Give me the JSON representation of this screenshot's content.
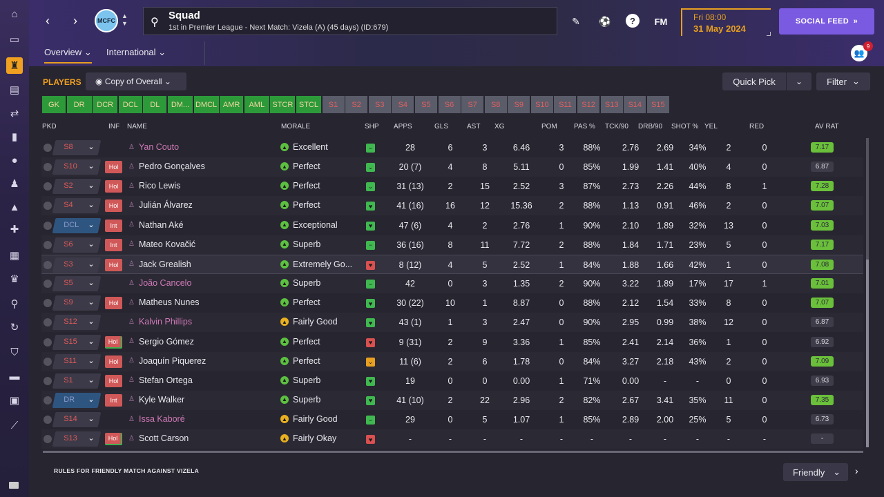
{
  "header": {
    "title": "Squad",
    "subtitle": "1st in Premier League - Next Match: Vizela (A) (45 days) (ID:679)",
    "date_day": "Fri 08:00",
    "date": "31 May 2024",
    "social_feed": "SOCIAL FEED",
    "fm_label": "FM",
    "help": "?",
    "notif_count": "9"
  },
  "tabs": [
    "Overview",
    "International"
  ],
  "toolbar": {
    "players_label": "PLAYERS",
    "view_select": "Copy of Overall",
    "quick_pick": "Quick Pick",
    "filter": "Filter"
  },
  "position_chips": {
    "green": [
      "GK",
      "DR",
      "DCR",
      "DCL",
      "DL",
      "DM...",
      "DMCL",
      "AMR",
      "AML",
      "STCR",
      "STCL"
    ],
    "subs": [
      "S1",
      "S2",
      "S3",
      "S4",
      "S5",
      "S6",
      "S7",
      "S8",
      "S9",
      "S10",
      "S11",
      "S12",
      "S13",
      "S14",
      "S15"
    ]
  },
  "columns": [
    "PKD",
    "INF",
    "NAME",
    "MORALE",
    "SHP",
    "APPS",
    "GLS",
    "AST",
    "XG",
    "POM",
    "PAS %",
    "TCK/90",
    "DRB/90",
    "SHOT %",
    "YEL",
    "RED",
    "AV RAT"
  ],
  "players": [
    {
      "pos": "S8",
      "inf": "",
      "name": "Yan Couto",
      "pink": true,
      "morale": "Excellent",
      "mc": "g",
      "shp": "g",
      "shp_icon": "−",
      "apps": "28",
      "gls": "6",
      "ast": "3",
      "xg": "6.46",
      "pom": "3",
      "pas": "88%",
      "tck": "2.76",
      "drb": "2.69",
      "shot": "34%",
      "yel": "2",
      "red": "0",
      "avr": "7.17",
      "avr_c": "g"
    },
    {
      "pos": "S10",
      "inf": "Hol",
      "name": "Pedro Gonçalves",
      "pink": false,
      "morale": "Perfect",
      "mc": "g",
      "shp": "g",
      "shp_icon": "⌄",
      "apps": "20 (7)",
      "gls": "4",
      "ast": "8",
      "xg": "5.11",
      "pom": "0",
      "pas": "85%",
      "tck": "1.99",
      "drb": "1.41",
      "shot": "40%",
      "yel": "4",
      "red": "0",
      "avr": "6.87",
      "avr_c": "n"
    },
    {
      "pos": "S2",
      "inf": "Hol",
      "name": "Rico Lewis",
      "pink": false,
      "morale": "Perfect",
      "mc": "g",
      "shp": "g",
      "shp_icon": "⌄",
      "apps": "31 (13)",
      "gls": "2",
      "ast": "15",
      "xg": "2.52",
      "pom": "3",
      "pas": "87%",
      "tck": "2.73",
      "drb": "2.26",
      "shot": "44%",
      "yel": "8",
      "red": "1",
      "avr": "7.28",
      "avr_c": "g"
    },
    {
      "pos": "S4",
      "inf": "Hol",
      "name": "Julián Álvarez",
      "pink": false,
      "morale": "Perfect",
      "mc": "g",
      "shp": "g",
      "shp_icon": "♥",
      "apps": "41 (16)",
      "gls": "16",
      "ast": "12",
      "xg": "15.36",
      "pom": "2",
      "pas": "88%",
      "tck": "1.13",
      "drb": "0.91",
      "shot": "46%",
      "yel": "2",
      "red": "0",
      "avr": "7.07",
      "avr_c": "g"
    },
    {
      "pos": "DCL",
      "inf": "Int",
      "name": "Nathan Aké",
      "pink": false,
      "morale": "Exceptional",
      "mc": "g",
      "shp": "g",
      "shp_icon": "♥",
      "apps": "47 (6)",
      "gls": "4",
      "ast": "2",
      "xg": "2.76",
      "pom": "1",
      "pas": "90%",
      "tck": "2.10",
      "drb": "1.89",
      "shot": "32%",
      "yel": "13",
      "red": "0",
      "avr": "7.03",
      "avr_c": "g",
      "dl": true
    },
    {
      "pos": "S6",
      "inf": "Int",
      "name": "Mateo Kovačić",
      "pink": false,
      "morale": "Superb",
      "mc": "g",
      "shp": "g",
      "shp_icon": "−",
      "apps": "36 (16)",
      "gls": "8",
      "ast": "11",
      "xg": "7.72",
      "pom": "2",
      "pas": "88%",
      "tck": "1.84",
      "drb": "1.71",
      "shot": "23%",
      "yel": "5",
      "red": "0",
      "avr": "7.17",
      "avr_c": "g"
    },
    {
      "pos": "S3",
      "inf": "Hol",
      "name": "Jack Grealish",
      "pink": false,
      "morale": "Extremely Go...",
      "mc": "g",
      "shp": "r",
      "shp_icon": "♥",
      "apps": "8 (12)",
      "gls": "4",
      "ast": "5",
      "xg": "2.52",
      "pom": "1",
      "pas": "84%",
      "tck": "1.88",
      "drb": "1.66",
      "shot": "42%",
      "yel": "1",
      "red": "0",
      "avr": "7.08",
      "avr_c": "g",
      "hl": true
    },
    {
      "pos": "S5",
      "inf": "",
      "name": "João Cancelo",
      "pink": true,
      "morale": "Superb",
      "mc": "g",
      "shp": "g",
      "shp_icon": "−",
      "apps": "42",
      "gls": "0",
      "ast": "3",
      "xg": "1.35",
      "pom": "2",
      "pas": "90%",
      "tck": "3.22",
      "drb": "1.89",
      "shot": "17%",
      "yel": "17",
      "red": "1",
      "avr": "7.01",
      "avr_c": "g"
    },
    {
      "pos": "S9",
      "inf": "Hol",
      "name": "Matheus Nunes",
      "pink": false,
      "morale": "Perfect",
      "mc": "g",
      "shp": "g",
      "shp_icon": "♥",
      "apps": "30 (22)",
      "gls": "10",
      "ast": "1",
      "xg": "8.87",
      "pom": "0",
      "pas": "88%",
      "tck": "2.12",
      "drb": "1.54",
      "shot": "33%",
      "yel": "8",
      "red": "0",
      "avr": "7.07",
      "avr_c": "g"
    },
    {
      "pos": "S12",
      "inf": "",
      "name": "Kalvin Phillips",
      "pink": true,
      "morale": "Fairly Good",
      "mc": "y",
      "shp": "g",
      "shp_icon": "♥",
      "apps": "43 (1)",
      "gls": "1",
      "ast": "3",
      "xg": "2.47",
      "pom": "0",
      "pas": "90%",
      "tck": "2.95",
      "drb": "0.99",
      "shot": "38%",
      "yel": "12",
      "red": "0",
      "avr": "6.87",
      "avr_c": "n"
    },
    {
      "pos": "S15",
      "inf": "Hol",
      "name": "Sergio Gómez",
      "pink": false,
      "morale": "Perfect",
      "mc": "g",
      "shp": "r",
      "shp_icon": "♥",
      "apps": "9 (31)",
      "gls": "2",
      "ast": "9",
      "xg": "3.36",
      "pom": "1",
      "pas": "85%",
      "tck": "2.41",
      "drb": "2.14",
      "shot": "36%",
      "yel": "1",
      "red": "0",
      "avr": "6.92",
      "avr_c": "n",
      "gb": true
    },
    {
      "pos": "S11",
      "inf": "Hol",
      "name": "Joaquín Piquerez",
      "pink": false,
      "morale": "Perfect",
      "mc": "g",
      "shp": "o",
      "shp_icon": "⌄",
      "apps": "11 (6)",
      "gls": "2",
      "ast": "6",
      "xg": "1.78",
      "pom": "0",
      "pas": "84%",
      "tck": "3.27",
      "drb": "2.18",
      "shot": "43%",
      "yel": "2",
      "red": "0",
      "avr": "7.09",
      "avr_c": "g"
    },
    {
      "pos": "S1",
      "inf": "Hol",
      "name": "Stefan Ortega",
      "pink": false,
      "morale": "Superb",
      "mc": "g",
      "shp": "g",
      "shp_icon": "♥",
      "apps": "19",
      "gls": "0",
      "ast": "0",
      "xg": "0.00",
      "pom": "1",
      "pas": "71%",
      "tck": "0.00",
      "drb": "-",
      "shot": "-",
      "yel": "0",
      "red": "0",
      "avr": "6.93",
      "avr_c": "n"
    },
    {
      "pos": "DR",
      "inf": "Int",
      "name": "Kyle Walker",
      "pink": false,
      "morale": "Superb",
      "mc": "g",
      "shp": "g",
      "shp_icon": "♥",
      "apps": "41 (10)",
      "gls": "2",
      "ast": "22",
      "xg": "2.96",
      "pom": "2",
      "pas": "82%",
      "tck": "2.67",
      "drb": "3.41",
      "shot": "35%",
      "yel": "11",
      "red": "0",
      "avr": "7.35",
      "avr_c": "g",
      "dl": true
    },
    {
      "pos": "S14",
      "inf": "",
      "name": "Issa Kaboré",
      "pink": true,
      "morale": "Fairly Good",
      "mc": "y",
      "shp": "g",
      "shp_icon": "−",
      "apps": "29",
      "gls": "0",
      "ast": "5",
      "xg": "1.07",
      "pom": "1",
      "pas": "85%",
      "tck": "2.89",
      "drb": "2.00",
      "shot": "25%",
      "yel": "5",
      "red": "0",
      "avr": "6.73",
      "avr_c": "n"
    },
    {
      "pos": "S13",
      "inf": "Hol",
      "name": "Scott Carson",
      "pink": false,
      "morale": "Fairly Okay",
      "mc": "y",
      "shp": "r",
      "shp_icon": "♥",
      "apps": "-",
      "gls": "-",
      "ast": "-",
      "xg": "-",
      "pom": "-",
      "pas": "-",
      "tck": "-",
      "drb": "-",
      "shot": "-",
      "yel": "-",
      "red": "-",
      "avr": "-",
      "avr_c": "n",
      "gb": true
    }
  ],
  "footer": {
    "rules": "RULES FOR FRIENDLY MATCH AGAINST VIZELA",
    "friendly": "Friendly"
  }
}
